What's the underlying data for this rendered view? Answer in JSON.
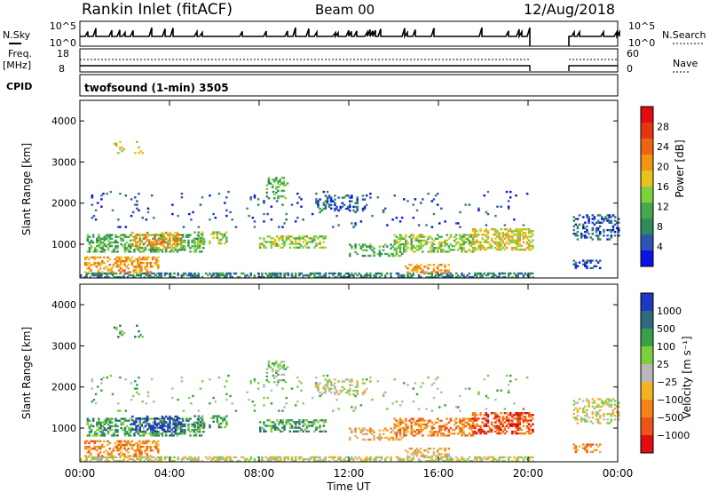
{
  "header": {
    "title": "Rankin Inlet (fitACF)",
    "beam": "Beam 00",
    "date": "12/Aug/2018"
  },
  "labels": {
    "nsky": "N.Sky",
    "nsearch": "N.Search",
    "freq": "Freq.",
    "freq_unit": "[MHz]",
    "nave": "Nave",
    "cpid": "CPID",
    "nsky_ticks": [
      "10^5",
      "10^0"
    ],
    "nsearch_ticks": [
      "10^5",
      "10^0"
    ],
    "freq_ticks": [
      "18",
      "8"
    ],
    "nave_ticks": [
      "60",
      "0"
    ]
  },
  "program": {
    "name": "twofsound (1-min) 3505"
  },
  "colors": {
    "power": [
      "#0a12e6",
      "#2c55b2",
      "#2f8a5c",
      "#46a84c",
      "#7dd13c",
      "#e8c21a",
      "#f29414",
      "#ee6414",
      "#e43612",
      "#e00e10"
    ],
    "velocity": [
      "#e00e10",
      "#ee5418",
      "#f4841a",
      "#f2b224",
      "#b8b8b8",
      "#7cd040",
      "#3aa048",
      "#2f6a7e",
      "#2038c0"
    ]
  },
  "chart_data": [
    {
      "type": "heatmap",
      "name": "power",
      "xlabel": "",
      "ylabel": "Slant Range [km]",
      "x_range_hours": [
        0,
        24
      ],
      "ylim": [
        180,
        4500
      ],
      "y_ticks": [
        1000,
        2000,
        3000,
        4000
      ],
      "colorbar": {
        "label": "Power [dB]",
        "ticks": [
          "28",
          "24",
          "20",
          "16",
          "12",
          "8",
          "4"
        ]
      }
    },
    {
      "type": "heatmap",
      "name": "velocity",
      "xlabel": "Time UT",
      "ylabel": "Slant Range [km]",
      "x_range_hours": [
        0,
        24
      ],
      "x_ticks": [
        "00:00",
        "04:00",
        "08:00",
        "12:00",
        "16:00",
        "20:00",
        "00:00"
      ],
      "ylim": [
        180,
        4500
      ],
      "y_ticks": [
        1000,
        2000,
        3000,
        4000
      ],
      "colorbar": {
        "label": "Velocity [m s⁻¹]",
        "ticks": [
          "1000",
          "500",
          "100",
          "25",
          "−25",
          "−100",
          "−500",
          "−1000"
        ]
      }
    }
  ]
}
